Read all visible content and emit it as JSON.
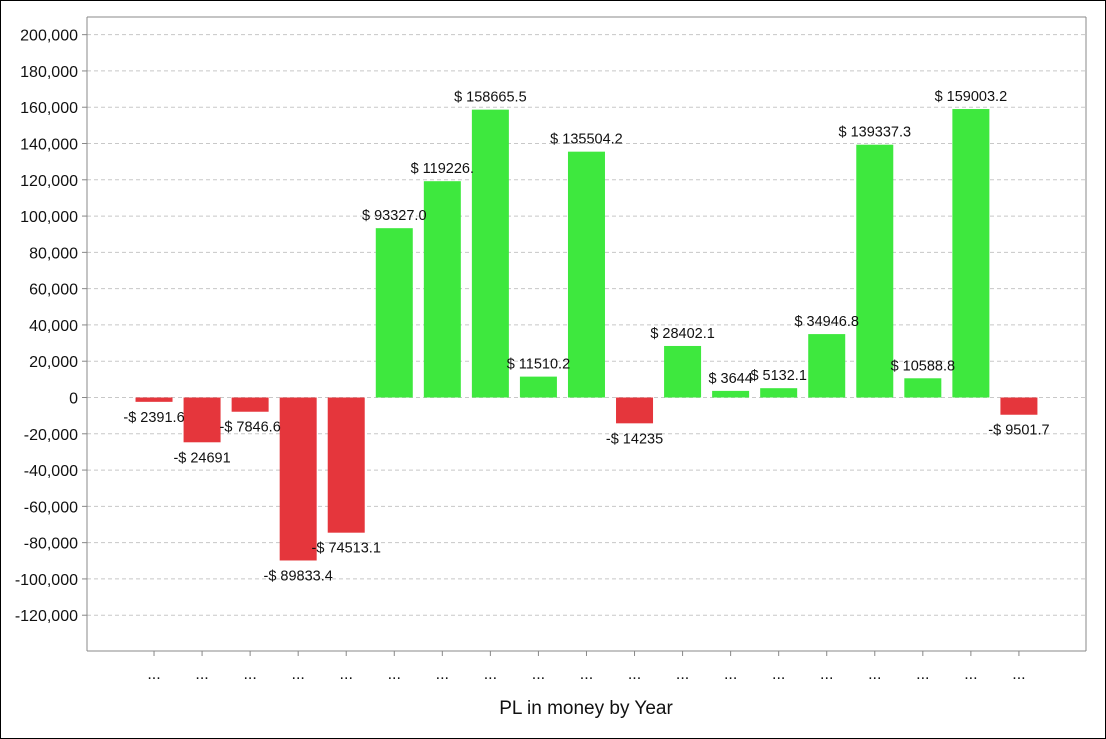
{
  "chart_data": {
    "type": "bar",
    "xlabel": "PL in money by Year",
    "ylabel": "",
    "ylim": [
      -140000,
      210000
    ],
    "yticks": [
      200000,
      180000,
      160000,
      140000,
      120000,
      100000,
      80000,
      60000,
      40000,
      20000,
      0,
      -20000,
      -40000,
      -60000,
      -80000,
      -100000,
      -120000
    ],
    "ytick_labels": [
      "200,000",
      "180,000",
      "160,000",
      "140,000",
      "120,000",
      "100,000",
      "80,000",
      "60,000",
      "40,000",
      "20,000",
      "0",
      "-20,000",
      "-40,000",
      "-60,000",
      "-80,000",
      "-100,000",
      "-120,000"
    ],
    "categories": [
      "...",
      "...",
      "...",
      "...",
      "...",
      "...",
      "...",
      "...",
      "...",
      "...",
      "...",
      "...",
      "...",
      "...",
      "...",
      "...",
      "...",
      "...",
      "..."
    ],
    "values": [
      -2391.6,
      -24691,
      -7846.6,
      -89833.4,
      -74513.1,
      93327.0,
      119226.0,
      158665.5,
      11510.2,
      135504.2,
      -14235,
      28402.1,
      3644,
      5132.1,
      34946.8,
      139337.3,
      10588.8,
      159003.2,
      -9501.7
    ],
    "data_labels": [
      "-$ 2391.6",
      "-$ 24691",
      "-$ 7846.6",
      "-$ 89833.4",
      "-$ 74513.1",
      "$ 93327.0",
      "$ 119226.",
      "$ 158665.5",
      "$ 11510.2",
      "$ 135504.2",
      "-$ 14235",
      "$ 28402.1",
      "$ 3644",
      "$ 5132.1",
      "$ 34946.8",
      "$ 139337.3",
      "$ 10588.8",
      "$ 159003.2",
      "-$ 9501.7"
    ],
    "grid": true,
    "legend": "none",
    "colors": {
      "positive": "#3ee83e",
      "negative": "#e5363c",
      "grid": "#c8c8c8",
      "axis": "#888888"
    }
  }
}
